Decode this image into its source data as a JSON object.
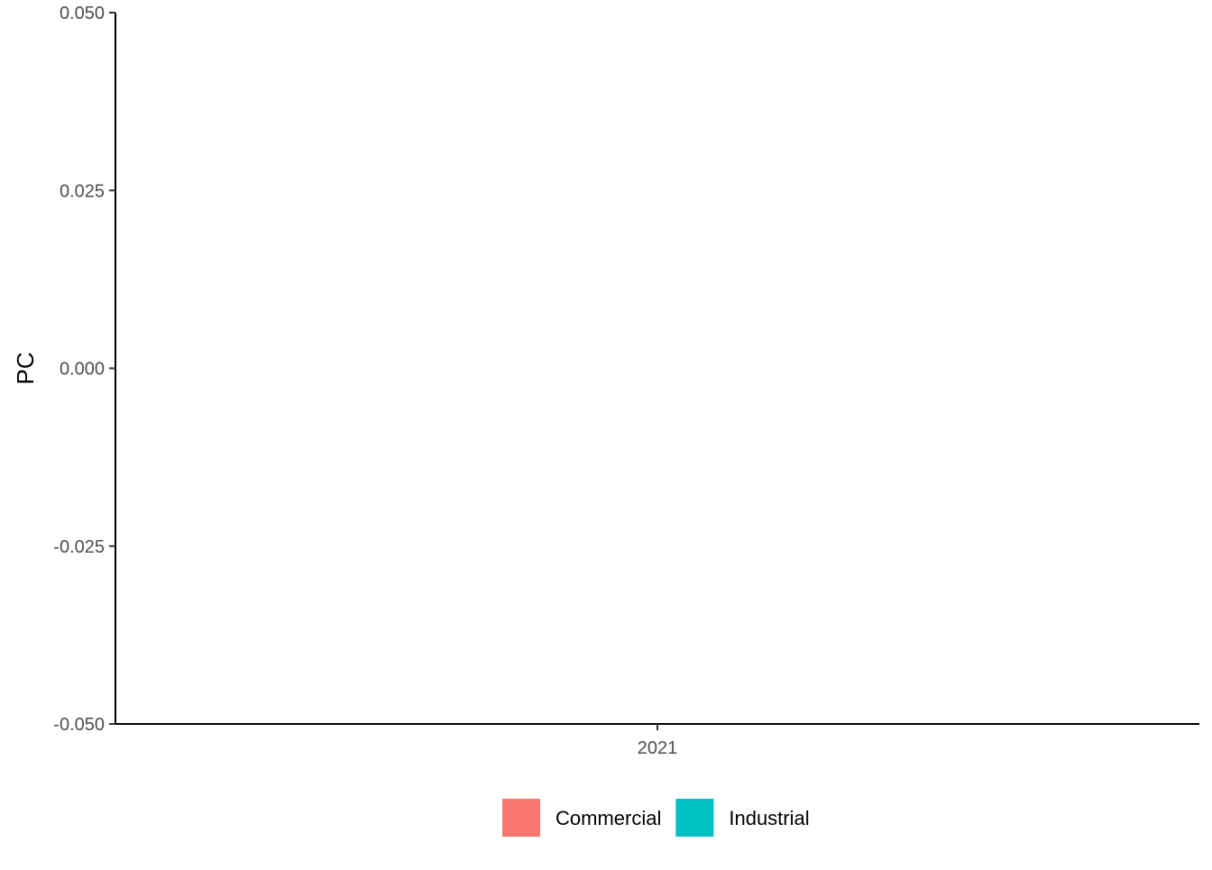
{
  "chart_data": {
    "type": "bar",
    "categories": [
      "2021"
    ],
    "series": [
      {
        "name": "Commercial",
        "values": [
          0
        ],
        "color": "#F8766D"
      },
      {
        "name": "Industrial",
        "values": [
          0
        ],
        "color": "#00BFC4"
      }
    ],
    "ylabel": "PC",
    "ylim": [
      -0.05,
      0.05
    ],
    "yticks": [
      0.05,
      0.025,
      0.0,
      -0.025,
      -0.05
    ],
    "ytick_labels": [
      "0.050",
      "0.025",
      "0.000",
      "-0.025",
      "-0.050"
    ],
    "grid": false,
    "legend_position": "bottom"
  }
}
